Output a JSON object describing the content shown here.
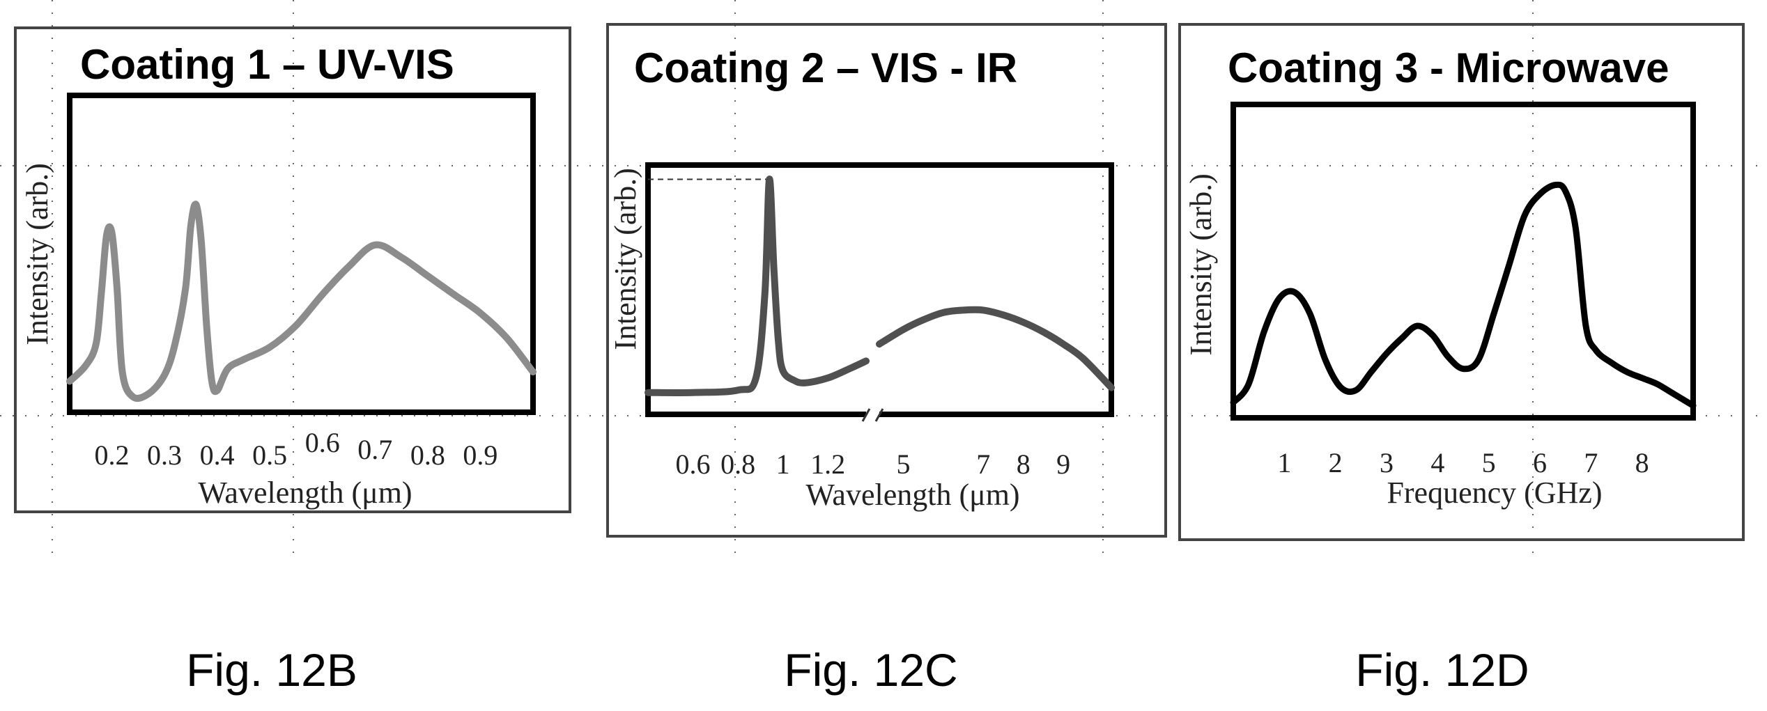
{
  "figures": [
    {
      "caption": "Fig. 12B"
    },
    {
      "caption": "Fig. 12C"
    },
    {
      "caption": "Fig. 12D"
    }
  ],
  "chart_data": [
    {
      "type": "line",
      "title": "Coating 1 – UV-VIS",
      "xlabel": "Wavelength (μm)",
      "ylabel": "Intensity (arb.)",
      "xlim": [
        0.12,
        1.0
      ],
      "ylim": [
        0,
        1
      ],
      "xticks": [
        {
          "v": 0.2,
          "label": "0.2"
        },
        {
          "v": 0.3,
          "label": "0.3"
        },
        {
          "v": 0.4,
          "label": "0.4"
        },
        {
          "v": 0.5,
          "label": "0.5"
        },
        {
          "v": 0.6,
          "label": "0.6"
        },
        {
          "v": 0.7,
          "label": "0.7"
        },
        {
          "v": 0.8,
          "label": "0.8"
        },
        {
          "v": 0.9,
          "label": "0.9"
        }
      ],
      "line_color": "#8c8c8c",
      "series": [
        {
          "x": [
            0.12,
            0.15,
            0.17,
            0.18,
            0.19,
            0.2,
            0.21,
            0.22,
            0.24,
            0.27,
            0.3,
            0.32,
            0.34,
            0.35,
            0.36,
            0.37,
            0.38,
            0.39,
            0.4,
            0.42,
            0.45,
            0.5,
            0.55,
            0.6,
            0.65,
            0.7,
            0.75,
            0.8,
            0.85,
            0.9,
            0.95,
            1.0
          ],
          "y": [
            0.1,
            0.15,
            0.22,
            0.38,
            0.57,
            0.58,
            0.4,
            0.13,
            0.05,
            0.06,
            0.12,
            0.22,
            0.4,
            0.6,
            0.67,
            0.55,
            0.28,
            0.1,
            0.07,
            0.14,
            0.17,
            0.21,
            0.28,
            0.38,
            0.47,
            0.54,
            0.5,
            0.44,
            0.38,
            0.32,
            0.24,
            0.13
          ]
        }
      ]
    },
    {
      "type": "line",
      "title": "Coating 2 – VIS - IR",
      "xlabel": "Wavelength (μm)",
      "ylabel": "Intensity (arb.)",
      "ylim": [
        0,
        1
      ],
      "axis_break": true,
      "xticks": [
        {
          "v": 0.6,
          "label": "0.6"
        },
        {
          "v": 0.8,
          "label": "0.8"
        },
        {
          "v": 1.0,
          "label": "1"
        },
        {
          "v": 1.2,
          "label": "1.2"
        },
        {
          "v": 5,
          "label": "5"
        },
        {
          "v": 7,
          "label": "7"
        },
        {
          "v": 8,
          "label": "8"
        },
        {
          "v": 9,
          "label": "9"
        }
      ],
      "line_color": "#505050",
      "series": [
        {
          "x": [
            0.4,
            0.6,
            0.8,
            0.88,
            0.92,
            0.94,
            0.96,
            0.98,
            1.0,
            1.05,
            1.1,
            1.2,
            1.3,
            1.37
          ],
          "y": [
            0.09,
            0.09,
            0.1,
            0.15,
            0.5,
            0.97,
            0.6,
            0.3,
            0.18,
            0.14,
            0.13,
            0.15,
            0.19,
            0.22
          ]
        },
        {
          "x": [
            4.4,
            5,
            5.5,
            6,
            6.5,
            7,
            7.5,
            8,
            8.5,
            9,
            9.5,
            10.2
          ],
          "y": [
            0.29,
            0.35,
            0.39,
            0.42,
            0.43,
            0.43,
            0.41,
            0.38,
            0.34,
            0.29,
            0.23,
            0.11
          ]
        }
      ]
    },
    {
      "type": "line",
      "title": "Coating 3 - Microwave",
      "xlabel": "Frequency (GHz)",
      "ylabel": "Intensity (arb.)",
      "xlim": [
        0,
        9
      ],
      "ylim": [
        0,
        1
      ],
      "xticks": [
        {
          "v": 1,
          "label": "1"
        },
        {
          "v": 2,
          "label": "2"
        },
        {
          "v": 3,
          "label": "3"
        },
        {
          "v": 4,
          "label": "4"
        },
        {
          "v": 5,
          "label": "5"
        },
        {
          "v": 6,
          "label": "6"
        },
        {
          "v": 7,
          "label": "7"
        },
        {
          "v": 8,
          "label": "8"
        }
      ],
      "line_color": "#000000",
      "series": [
        {
          "x": [
            0,
            0.3,
            0.6,
            0.9,
            1.2,
            1.5,
            1.8,
            2.1,
            2.4,
            2.7,
            3.0,
            3.3,
            3.6,
            3.9,
            4.2,
            4.5,
            4.8,
            5.1,
            5.4,
            5.7,
            6.0,
            6.3,
            6.5,
            6.7,
            6.9,
            7.1,
            7.4,
            7.7,
            8.0,
            8.3,
            8.6,
            9.0
          ],
          "y": [
            0.05,
            0.11,
            0.28,
            0.39,
            0.41,
            0.34,
            0.19,
            0.1,
            0.09,
            0.15,
            0.21,
            0.26,
            0.3,
            0.27,
            0.2,
            0.16,
            0.19,
            0.34,
            0.5,
            0.66,
            0.73,
            0.76,
            0.74,
            0.62,
            0.3,
            0.22,
            0.18,
            0.15,
            0.13,
            0.11,
            0.08,
            0.04
          ]
        }
      ]
    }
  ]
}
